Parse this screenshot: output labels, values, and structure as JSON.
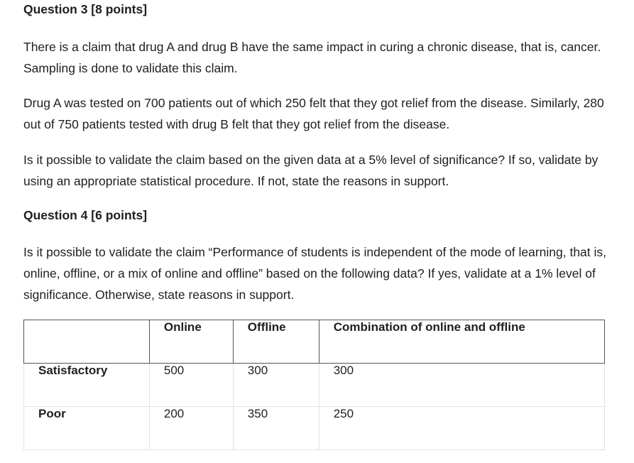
{
  "q3": {
    "heading": "Question 3 [8 points]",
    "p1": "There is a claim that drug A and drug B have the same impact in curing a chronic disease, that is, cancer. Sampling is done to validate this claim.",
    "p2": "Drug A was tested on 700 patients out of which 250 felt that they got relief from the disease. Similarly, 280 out of 750 patients tested with drug B felt that they got relief from the disease.",
    "p3": "Is it possible to validate the claim based on the given data at a 5% level of significance? If so, validate by using an appropriate statistical procedure. If not, state the reasons in support."
  },
  "q4": {
    "heading": "Question 4 [6 points]",
    "p1": "Is it possible to validate the claim “Performance of students is independent of the mode of learning, that is, online, offline, or a mix of online and offline” based on the following data? If yes, validate at a 1% level of significance. Otherwise, state reasons in support."
  },
  "table": {
    "headers": [
      "",
      "Online",
      "Offline",
      "Combination of online and offline"
    ],
    "rows": [
      {
        "label": "Satisfactory",
        "values": [
          "500",
          "300",
          "300"
        ]
      },
      {
        "label": "Poor",
        "values": [
          "200",
          "350",
          "250"
        ]
      }
    ]
  }
}
